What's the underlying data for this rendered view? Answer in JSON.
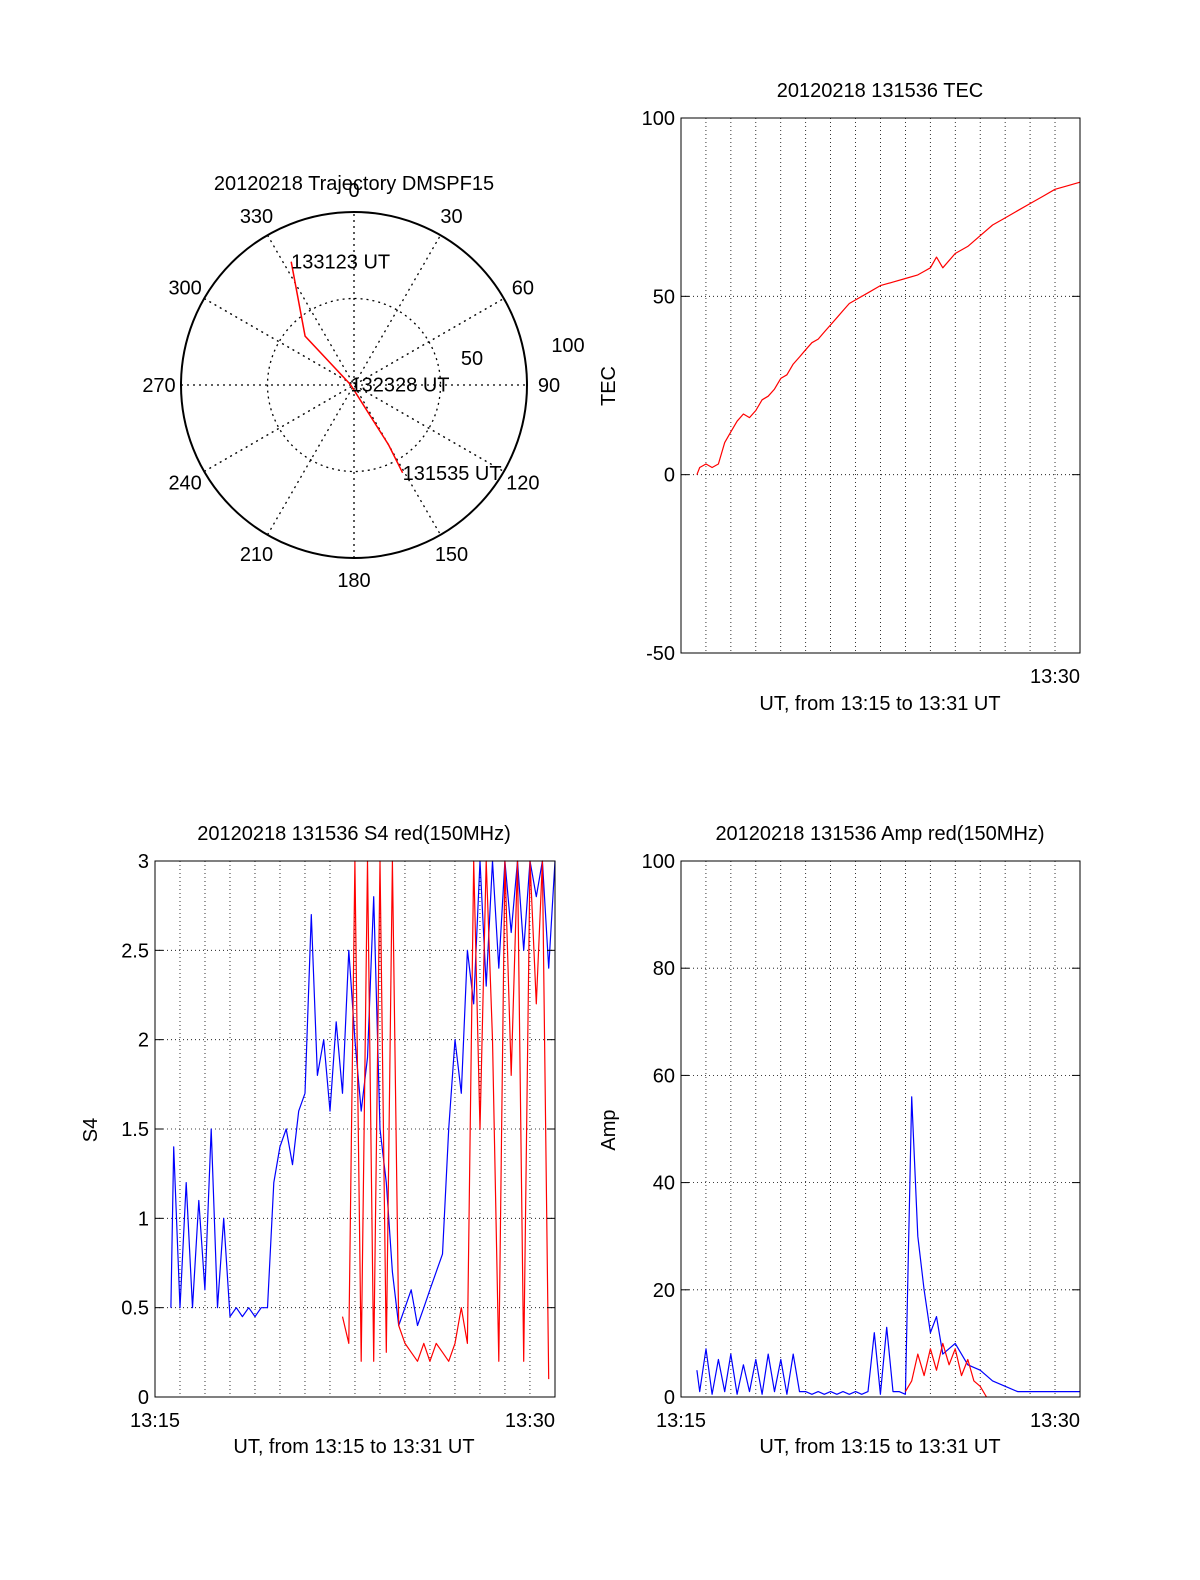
{
  "colors": {
    "red": "#ff0000",
    "blue": "#0000ff",
    "axis": "#000000"
  },
  "chart_data": [
    {
      "type": "polar",
      "title": "20120218 Trajectory DMSPF15",
      "angle_labels": [
        "0",
        "30",
        "60",
        "90",
        "120",
        "150",
        "180",
        "210",
        "240",
        "270",
        "300",
        "330"
      ],
      "radius_labels": [
        "50",
        "100"
      ],
      "rlim": [
        0,
        100
      ],
      "grid": true,
      "series": [
        {
          "color": "red",
          "points": [
            [
              333,
              80
            ],
            [
              315,
              40
            ],
            [
              275,
              2
            ],
            [
              150,
              40
            ],
            [
              151,
              58
            ]
          ]
        }
      ],
      "annotations": [
        {
          "text": "133123 UT",
          "az": 333,
          "r": 80
        },
        {
          "text": "132328 UT",
          "az": 275,
          "r": 2
        },
        {
          "text": "131535 UT",
          "az": 151,
          "r": 58
        }
      ]
    },
    {
      "type": "line",
      "title": "20120218 131536 TEC",
      "xlabel": "UT, from 13:15 to 13:31 UT",
      "ylabel": "TEC",
      "xlim": [
        13.25,
        13.5167
      ],
      "ylim": [
        -50,
        100
      ],
      "yticks": [
        "100",
        "50",
        "0",
        "-50"
      ],
      "xticks": [
        {
          "label": "13:30",
          "value": 13.5
        }
      ],
      "grid": true,
      "series": [
        {
          "color": "red",
          "x": [
            13.2606,
            13.2625,
            13.2667,
            13.2708,
            13.275,
            13.2792,
            13.2833,
            13.2875,
            13.2917,
            13.2958,
            13.3,
            13.3042,
            13.3083,
            13.3125,
            13.3167,
            13.3208,
            13.325,
            13.3292,
            13.3333,
            13.3375,
            13.3417,
            13.3458,
            13.35,
            13.3542,
            13.3583,
            13.3625,
            13.3667,
            13.375,
            13.3833,
            13.3917,
            13.4,
            13.4083,
            13.4125,
            13.4167,
            13.4208,
            13.425,
            13.4333,
            13.4417,
            13.45,
            13.4583,
            13.4667,
            13.475,
            13.4833,
            13.4917,
            13.5,
            13.5083,
            13.5167
          ],
          "values": [
            0,
            2,
            3,
            2,
            3,
            9,
            12,
            15,
            17,
            16,
            18,
            21,
            22,
            24,
            27,
            28,
            31,
            33,
            35,
            37,
            38,
            40,
            42,
            44,
            46,
            48,
            49,
            51,
            53,
            54,
            55,
            56,
            57,
            58,
            61,
            58,
            62,
            64,
            67,
            70,
            72,
            74,
            76,
            78,
            80,
            81,
            82
          ]
        }
      ]
    },
    {
      "type": "line",
      "title": "20120218 131536 S4 red(150MHz)",
      "xlabel": "UT, from 13:15 to 13:31 UT",
      "ylabel": "S4",
      "xlim": [
        13.25,
        13.5167
      ],
      "ylim": [
        0,
        3
      ],
      "yticks": [
        "3",
        "2.5",
        "2",
        "1.5",
        "1",
        "0.5",
        "0"
      ],
      "xticks": [
        {
          "label": "13:15",
          "value": 13.25
        },
        {
          "label": "13:30",
          "value": 13.5
        }
      ],
      "grid": true,
      "series": [
        {
          "color": "blue",
          "x": [
            13.2606,
            13.2625,
            13.2667,
            13.2708,
            13.275,
            13.2792,
            13.2833,
            13.2875,
            13.2917,
            13.2958,
            13.3,
            13.3042,
            13.3083,
            13.3125,
            13.3167,
            13.3208,
            13.325,
            13.3292,
            13.3333,
            13.3375,
            13.3417,
            13.3458,
            13.35,
            13.3542,
            13.3583,
            13.3625,
            13.3667,
            13.3708,
            13.375,
            13.3792,
            13.3833,
            13.3875,
            13.3917,
            13.3958,
            13.4,
            13.4042,
            13.4083,
            13.4125,
            13.4167,
            13.4208,
            13.425,
            13.4292,
            13.4333,
            13.4375,
            13.4417,
            13.4458,
            13.45,
            13.4542,
            13.4583,
            13.4625,
            13.4667,
            13.4708,
            13.475,
            13.4792,
            13.4833,
            13.4875,
            13.4917,
            13.4958,
            13.5,
            13.5042,
            13.5083,
            13.5125,
            13.5167
          ],
          "values": [
            0.5,
            1.4,
            0.5,
            1.2,
            0.5,
            1.1,
            0.6,
            1.5,
            0.5,
            1.0,
            0.45,
            0.5,
            0.45,
            0.5,
            0.45,
            0.5,
            0.5,
            1.2,
            1.4,
            1.5,
            1.3,
            1.6,
            1.7,
            2.7,
            1.8,
            2.0,
            1.6,
            2.1,
            1.7,
            2.5,
            2.0,
            1.6,
            1.9,
            2.8,
            1.5,
            1.2,
            0.7,
            0.4,
            0.5,
            0.6,
            0.4,
            0.5,
            0.6,
            0.7,
            0.8,
            1.5,
            2.0,
            1.7,
            2.5,
            2.2,
            3.0,
            2.3,
            3.0,
            2.4,
            3.0,
            2.6,
            3.0,
            2.5,
            3.0,
            2.8,
            3.0,
            2.4,
            3.0
          ]
        },
        {
          "color": "red",
          "x": [
            13.375,
            13.3792,
            13.3833,
            13.3875,
            13.3917,
            13.3958,
            13.4,
            13.4042,
            13.4083,
            13.4125,
            13.4167,
            13.4208,
            13.425,
            13.4292,
            13.4333,
            13.4375,
            13.4417,
            13.4458,
            13.45,
            13.4542,
            13.4583,
            13.4625,
            13.4667,
            13.4708,
            13.475,
            13.4792,
            13.4833,
            13.4875,
            13.4917,
            13.4958,
            13.5,
            13.5042,
            13.5083,
            13.5125
          ],
          "values": [
            0.45,
            0.3,
            3.0,
            0.2,
            3.0,
            0.2,
            3.0,
            0.25,
            3.0,
            0.4,
            0.3,
            0.25,
            0.2,
            0.3,
            0.2,
            0.3,
            0.25,
            0.2,
            0.3,
            0.5,
            0.3,
            3.0,
            1.5,
            3.0,
            2.0,
            0.2,
            3.0,
            1.8,
            3.0,
            0.2,
            3.0,
            2.2,
            3.0,
            0.1
          ]
        }
      ]
    },
    {
      "type": "line",
      "title": "20120218 131536 Amp red(150MHz)",
      "xlabel": "UT, from 13:15 to 13:31 UT",
      "ylabel": "Amp",
      "xlim": [
        13.25,
        13.5167
      ],
      "ylim": [
        0,
        100
      ],
      "yticks": [
        "100",
        "80",
        "60",
        "40",
        "20",
        "0"
      ],
      "xticks": [
        {
          "label": "13:15",
          "value": 13.25
        },
        {
          "label": "13:30",
          "value": 13.5
        }
      ],
      "grid": true,
      "series": [
        {
          "color": "blue",
          "x": [
            13.2606,
            13.2625,
            13.2667,
            13.2708,
            13.275,
            13.2792,
            13.2833,
            13.2875,
            13.2917,
            13.2958,
            13.3,
            13.3042,
            13.3083,
            13.3125,
            13.3167,
            13.3208,
            13.325,
            13.3292,
            13.3333,
            13.3375,
            13.3417,
            13.3458,
            13.35,
            13.3542,
            13.3583,
            13.3625,
            13.3667,
            13.3708,
            13.375,
            13.3792,
            13.3833,
            13.3875,
            13.3917,
            13.3958,
            13.4,
            13.4042,
            13.4083,
            13.4125,
            13.4167,
            13.4208,
            13.425,
            13.4333,
            13.4417,
            13.45,
            13.4583,
            13.4667,
            13.475,
            13.4833,
            13.4917,
            13.5,
            13.5083,
            13.5167
          ],
          "values": [
            5,
            1,
            9,
            0.5,
            7,
            1,
            8,
            0.5,
            6,
            1,
            7,
            0.5,
            8,
            1,
            7,
            0.5,
            8,
            1,
            1,
            0.5,
            1,
            0.5,
            1,
            0.5,
            1,
            0.5,
            1,
            0.5,
            1,
            12,
            0.5,
            13,
            1,
            1,
            0.5,
            56,
            30,
            20,
            12,
            15,
            8,
            10,
            6,
            5,
            3,
            2,
            1,
            1,
            1,
            1,
            1,
            1
          ]
        },
        {
          "color": "red",
          "x": [
            13.4,
            13.4042,
            13.4083,
            13.4125,
            13.4167,
            13.4208,
            13.425,
            13.4292,
            13.4333,
            13.4375,
            13.4417,
            13.4458,
            13.45,
            13.4542
          ],
          "values": [
            1,
            3,
            8,
            4,
            9,
            5,
            10,
            6,
            9,
            4,
            7,
            3,
            2,
            0
          ]
        }
      ]
    }
  ]
}
